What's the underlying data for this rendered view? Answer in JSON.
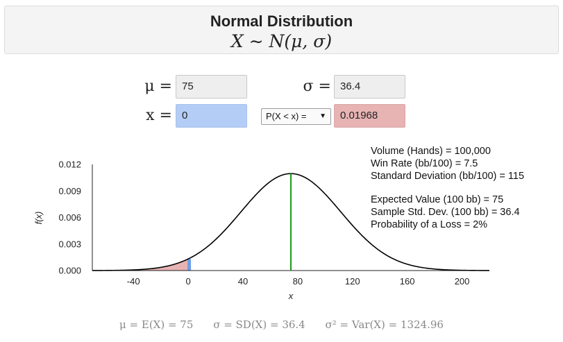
{
  "header": {
    "title": "Normal Distribution",
    "formula": "X ∼ N(μ, σ)"
  },
  "inputs": {
    "mu_label": "μ =",
    "mu_value": "75",
    "sigma_label": "σ =",
    "sigma_value": "36.4",
    "x_label": "x =",
    "x_value": "0",
    "prob_select": "P(X < x) =",
    "prob_value": "0.01968"
  },
  "info": {
    "lines1": [
      "Volume (Hands) = 100,000",
      "Win Rate (bb/100) = 7.5",
      "Standard Deviation (bb/100) = 115"
    ],
    "lines2": [
      "Expected Value (100 bb) = 75",
      "Sample Std. Dev. (100 bb) = 36.4",
      "Probability of a Loss = 2%"
    ]
  },
  "footer": {
    "mean": "μ = E(X) = 75",
    "sd": "σ = SD(X) = 36.4",
    "var": "σ² = Var(X) = 1324.96"
  },
  "colors": {
    "curve": "#000000",
    "mean_line": "#1a9a1a",
    "tail_fill": "#e7b3b3",
    "x_marker": "#6fa0e8"
  },
  "chart_data": {
    "type": "line",
    "xlabel": "x",
    "ylabel": "f(x)",
    "mu": 75,
    "sigma": 36.4,
    "x_marker": 0,
    "xlim": [
      -70,
      220
    ],
    "ylim": [
      0,
      0.012
    ],
    "xticks": [
      "-40",
      "0",
      "40",
      "80",
      "120",
      "160",
      "200"
    ],
    "xtick_values": [
      -40,
      0,
      40,
      80,
      120,
      160,
      200
    ],
    "yticks": [
      "0.000",
      "0.003",
      "0.006",
      "0.009",
      "0.012"
    ],
    "ytick_values": [
      0,
      0.003,
      0.006,
      0.009,
      0.012
    ],
    "shaded_region": "x < 0"
  }
}
